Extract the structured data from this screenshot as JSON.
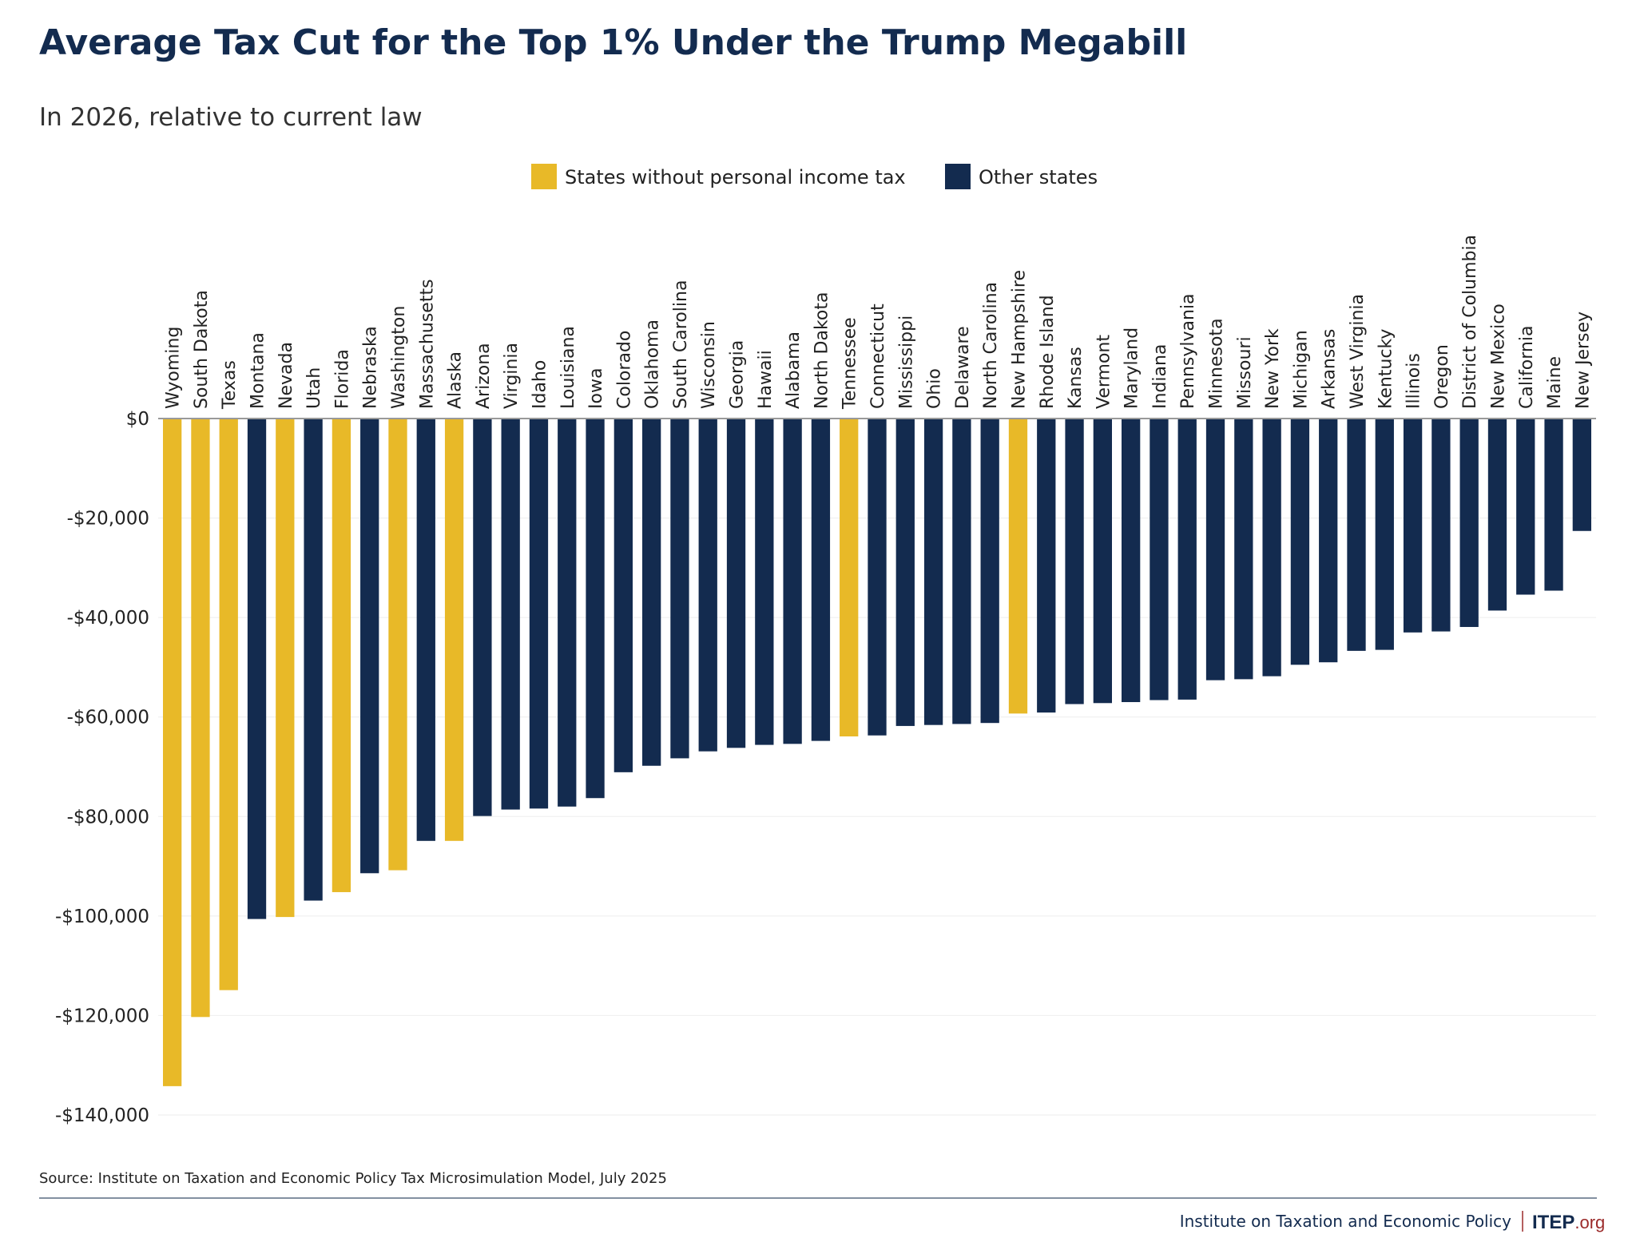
{
  "chart_data": {
    "type": "bar",
    "title": "Average Tax Cut for the Top 1% Under the Trump Megabill",
    "subtitle": "In 2026, relative to current law",
    "xlabel": "",
    "ylabel": "",
    "ylim": [
      -140000,
      0
    ],
    "yticks": [
      0,
      -20000,
      -40000,
      -60000,
      -80000,
      -100000,
      -120000,
      -140000
    ],
    "ytick_labels": [
      "$0",
      "-$20,000",
      "-$40,000",
      "-$60,000",
      "-$80,000",
      "-$100,000",
      "-$120,000",
      "-$140,000"
    ],
    "grid": true,
    "legend_position": "top-center",
    "legend": [
      {
        "key": "no_pit",
        "name": "States without personal income tax",
        "color": "#e8b928"
      },
      {
        "key": "other",
        "name": "Other states",
        "color": "#132b4f"
      }
    ],
    "categories": [
      "Wyoming",
      "South Dakota",
      "Texas",
      "Montana",
      "Nevada",
      "Utah",
      "Florida",
      "Nebraska",
      "Washington",
      "Massachusetts",
      "Alaska",
      "Arizona",
      "Virginia",
      "Idaho",
      "Louisiana",
      "Iowa",
      "Colorado",
      "Oklahoma",
      "South Carolina",
      "Wisconsin",
      "Georgia",
      "Hawaii",
      "Alabama",
      "North Dakota",
      "Tennessee",
      "Connecticut",
      "Mississippi",
      "Ohio",
      "Delaware",
      "North Carolina",
      "New Hampshire",
      "Rhode Island",
      "Kansas",
      "Vermont",
      "Maryland",
      "Indiana",
      "Pennsylvania",
      "Minnesota",
      "Missouri",
      "New York",
      "Michigan",
      "Arkansas",
      "West Virginia",
      "Kentucky",
      "Illinois",
      "Oregon",
      "District of Columbia",
      "New Mexico",
      "California",
      "Maine",
      "New Jersey"
    ],
    "values": [
      -134200,
      -120300,
      -114900,
      -100600,
      -100200,
      -96900,
      -95200,
      -91400,
      -90800,
      -84900,
      -84900,
      -79900,
      -78600,
      -78400,
      -78000,
      -76300,
      -71100,
      -69800,
      -68300,
      -66900,
      -66200,
      -65600,
      -65400,
      -64800,
      -63900,
      -63700,
      -61800,
      -61600,
      -61400,
      -61200,
      -59300,
      -59100,
      -57400,
      -57200,
      -57000,
      -56600,
      -56500,
      -52600,
      -52400,
      -51800,
      -49500,
      -49000,
      -46700,
      -46500,
      -43000,
      -42800,
      -41900,
      -38600,
      -35400,
      -34600,
      -22600
    ],
    "groups": [
      "no_pit",
      "no_pit",
      "no_pit",
      "other",
      "no_pit",
      "other",
      "no_pit",
      "other",
      "no_pit",
      "other",
      "no_pit",
      "other",
      "other",
      "other",
      "other",
      "other",
      "other",
      "other",
      "other",
      "other",
      "other",
      "other",
      "other",
      "other",
      "no_pit",
      "other",
      "other",
      "other",
      "other",
      "other",
      "no_pit",
      "other",
      "other",
      "other",
      "other",
      "other",
      "other",
      "other",
      "other",
      "other",
      "other",
      "other",
      "other",
      "other",
      "other",
      "other",
      "other",
      "other",
      "other",
      "other",
      "other"
    ]
  },
  "source": "Source: Institute on Taxation and Economic Policy Tax Microsimulation Model, July 2025",
  "footer": {
    "org_name": "Institute on Taxation and Economic Policy",
    "logo_text": "ITEP.org"
  },
  "colors": {
    "title": "#132b4f",
    "grid": "#eeeeee",
    "zero_line": "#999999",
    "rule": "#5a6b82",
    "logo_accent": "#9b2a2a"
  }
}
